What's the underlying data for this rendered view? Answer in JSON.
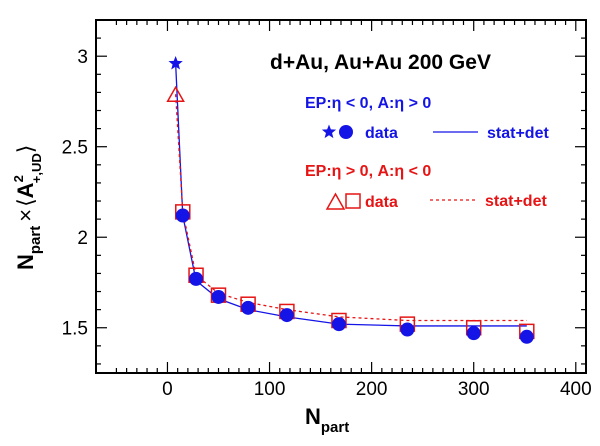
{
  "chart_data": {
    "type": "scatter",
    "title": "d+Au, Au+Au 200 GeV",
    "xlabel": {
      "main": "N",
      "sub": "part"
    },
    "ylabel": {
      "n": "N",
      "n_sub": "part",
      "times": "×",
      "open": "⟨",
      "a": "A",
      "sup": "2",
      "sub": "+,UD",
      "close": "⟩"
    },
    "xlim": [
      -70,
      410
    ],
    "ylim": [
      1.25,
      3.2
    ],
    "xticks": [
      0,
      100,
      200,
      300,
      400
    ],
    "yticks": [
      1.5,
      2,
      2.5,
      3
    ],
    "xtick_labels": [
      "0",
      "100",
      "200",
      "300",
      "400"
    ],
    "ytick_labels": [
      "1.5",
      "2",
      "2.5",
      "3"
    ],
    "colors": {
      "blue": "#1414e6",
      "red": "#e61414"
    },
    "legend": {
      "group1": {
        "header": "EP:η < 0, A:η > 0",
        "data_label": "data",
        "line_label": "stat+det",
        "color": "#1414e6"
      },
      "group2": {
        "header": "EP:η > 0, A:η < 0",
        "data_label": "data",
        "line_label": "stat+det",
        "color": "#e61414"
      }
    },
    "series": [
      {
        "key": "blue_dau",
        "marker": "star",
        "filled": true,
        "color": "#1414e6",
        "x": [
          8
        ],
        "y": [
          2.96
        ]
      },
      {
        "key": "blue_auau",
        "marker": "circle",
        "filled": true,
        "color": "#1414e6",
        "x": [
          15,
          28,
          50,
          79,
          117,
          168,
          235,
          300,
          352
        ],
        "y": [
          2.12,
          1.77,
          1.67,
          1.61,
          1.57,
          1.52,
          1.49,
          1.47,
          1.45
        ]
      },
      {
        "key": "red_dau",
        "marker": "triangle",
        "filled": false,
        "color": "#e61414",
        "x": [
          8
        ],
        "y": [
          2.79
        ]
      },
      {
        "key": "red_auau",
        "marker": "square",
        "filled": false,
        "color": "#e61414",
        "x": [
          15,
          28,
          50,
          79,
          117,
          168,
          235,
          300,
          352
        ],
        "y": [
          2.14,
          1.79,
          1.68,
          1.63,
          1.59,
          1.54,
          1.52,
          1.5,
          1.48
        ]
      },
      {
        "key": "blue_curve",
        "marker": "line",
        "dashed": false,
        "color": "#1414e6",
        "x": [
          8,
          15,
          28,
          50,
          79,
          117,
          168,
          235,
          300,
          352
        ],
        "y": [
          2.96,
          2.12,
          1.76,
          1.66,
          1.6,
          1.56,
          1.52,
          1.51,
          1.51,
          1.51
        ]
      },
      {
        "key": "red_curve",
        "marker": "line",
        "dashed": true,
        "color": "#e61414",
        "x": [
          8,
          15,
          28,
          50,
          79,
          117,
          168,
          235,
          300,
          352
        ],
        "y": [
          2.79,
          2.14,
          1.79,
          1.69,
          1.64,
          1.6,
          1.56,
          1.54,
          1.54,
          1.54
        ]
      }
    ]
  }
}
